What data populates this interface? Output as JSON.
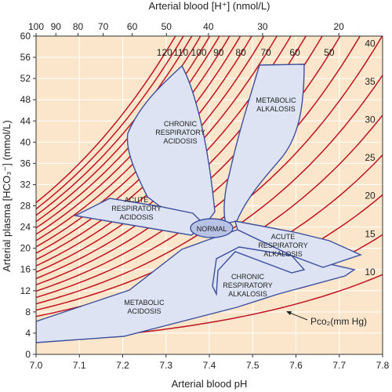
{
  "chart_data": {
    "type": "line",
    "xlabel": "Arterial blood pH",
    "ylabel": "Arterial plasma [HCO₃⁻] (mmol/L)",
    "top_axis_label": "Arterial blood [H⁺] (nmol/L)",
    "xlim": [
      7.0,
      7.8
    ],
    "ylim": [
      0,
      60
    ],
    "x_ticks": [
      "7.0",
      "7.1",
      "7.2",
      "7.3",
      "7.4",
      "7.5",
      "7.6",
      "7.7",
      "7.8"
    ],
    "y_ticks": [
      "0",
      "4",
      "8",
      "12",
      "16",
      "20",
      "24",
      "28",
      "32",
      "36",
      "40",
      "44",
      "48",
      "52",
      "56",
      "60"
    ],
    "top_ticks": [
      {
        "value": 100,
        "label": "100"
      },
      {
        "value": 90,
        "label": "90"
      },
      {
        "value": 80,
        "label": "80"
      },
      {
        "value": 70,
        "label": "70"
      },
      {
        "value": 60,
        "label": "60"
      },
      {
        "value": 50,
        "label": "50"
      },
      {
        "value": 40,
        "label": "40"
      },
      {
        "value": 30,
        "label": "30"
      },
      {
        "value": 20,
        "label": "20"
      }
    ],
    "isobars": {
      "label": "Pco₂(mm Hg)",
      "values": [
        10,
        15,
        20,
        25,
        30,
        35,
        40,
        45,
        50,
        55,
        60,
        65,
        70,
        75,
        80,
        85,
        90,
        95,
        100,
        105,
        110,
        115,
        120
      ],
      "labeled": [
        {
          "value": 120,
          "label": "120"
        },
        {
          "value": 110,
          "label": "110"
        },
        {
          "value": 100,
          "label": "100"
        },
        {
          "value": 90,
          "label": "90"
        },
        {
          "value": 80,
          "label": "80"
        },
        {
          "value": 70,
          "label": "70"
        },
        {
          "value": 60,
          "label": "60"
        },
        {
          "value": 50,
          "label": "50"
        },
        {
          "value": 40,
          "label": "40"
        },
        {
          "value": 35,
          "label": "35"
        },
        {
          "value": 30,
          "label": "30"
        },
        {
          "value": 25,
          "label": "25"
        },
        {
          "value": 20,
          "label": "20"
        },
        {
          "value": 15,
          "label": "15"
        },
        {
          "value": 10,
          "label": "10"
        }
      ]
    },
    "regions": [
      {
        "name": "NORMAL",
        "lines": [
          "NORMAL"
        ]
      },
      {
        "name": "CHRONIC RESPIRATORY ACIDOSIS",
        "lines": [
          "CHRONIC",
          "RESPIRATORY",
          "ACIDOSIS"
        ]
      },
      {
        "name": "METABOLIC ALKALOSIS",
        "lines": [
          "METABOLIC",
          "ALKALOSIS"
        ]
      },
      {
        "name": "ACUTE RESPIRATORY ACIDOSIS",
        "lines": [
          "ACUTE",
          "RESPIRATORY",
          "ACIDOSIS"
        ]
      },
      {
        "name": "ACUTE RESPIRATORY ALKALOSIS",
        "lines": [
          "ACUTE",
          "RESPIRATORY",
          "ALKALOSIS"
        ]
      },
      {
        "name": "CHRONIC RESPIRATORY ALKALOSIS",
        "lines": [
          "CHRONIC",
          "RESPIRATORY",
          "ALKALOSIS"
        ]
      },
      {
        "name": "METABOLIC ACIDOSIS",
        "lines": [
          "METABOLIC",
          "ACIDOSIS"
        ]
      }
    ],
    "colors": {
      "background": "#fbe6cc",
      "isobar": "#c1121f",
      "region_fill": "#dde3f3",
      "region_stroke": "#3d4f9c",
      "grid": "#ffffff"
    },
    "grid": true
  }
}
